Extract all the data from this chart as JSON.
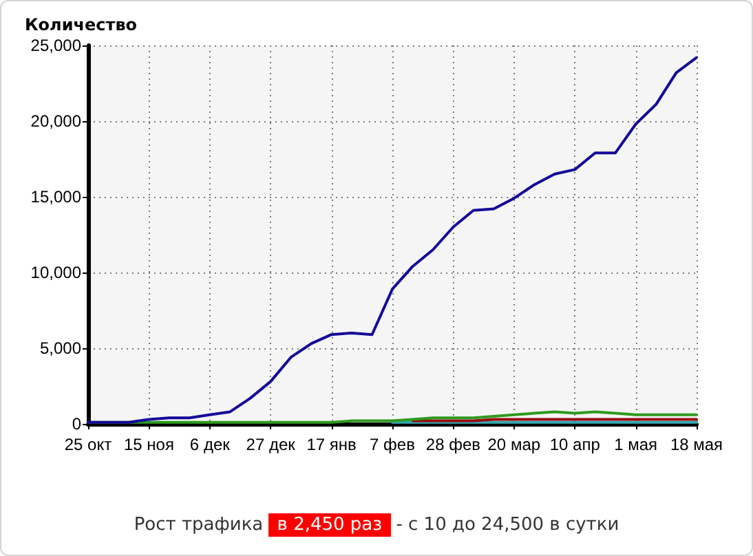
{
  "chart_data": {
    "type": "line",
    "ylabel": "Количество",
    "categories": [
      "25 окт",
      null,
      null,
      "15 ноя",
      null,
      null,
      "6 дек",
      null,
      null,
      "27 дек",
      null,
      null,
      "17 янв",
      null,
      null,
      "7 фев",
      null,
      null,
      "28 фев",
      null,
      null,
      "20 мар",
      null,
      null,
      "10 апр",
      null,
      null,
      "1 мая",
      null,
      null,
      "18 мая"
    ],
    "series": [
      {
        "color": "#14099a",
        "values": [
          100,
          100,
          100,
          300,
          400,
          400,
          600,
          800,
          1700,
          2800,
          4400,
          5300,
          5900,
          6000,
          5900,
          8900,
          10400,
          11500,
          13000,
          14100,
          14200,
          14900,
          15800,
          16500,
          16800,
          17900,
          17900,
          19800,
          21100,
          23200,
          24200
        ]
      },
      {
        "color": "#2e9a1e",
        "values": [
          100,
          100,
          100,
          100,
          100,
          100,
          100,
          100,
          100,
          100,
          100,
          100,
          100,
          200,
          200,
          200,
          300,
          400,
          400,
          400,
          500,
          600,
          700,
          800,
          700,
          800,
          700,
          600,
          600,
          600,
          600
        ]
      },
      {
        "color": "#9a0a0a",
        "values": [
          null,
          null,
          null,
          null,
          null,
          null,
          null,
          null,
          null,
          null,
          null,
          null,
          null,
          null,
          null,
          null,
          200,
          200,
          200,
          200,
          300,
          300,
          300,
          300,
          300,
          300,
          300,
          300,
          300,
          300,
          300
        ]
      },
      {
        "color": "#33a8b0",
        "values": [
          null,
          null,
          null,
          null,
          null,
          null,
          null,
          null,
          null,
          null,
          null,
          null,
          null,
          null,
          null,
          100,
          100,
          100,
          100,
          100,
          100,
          100,
          100,
          100,
          100,
          100,
          100,
          100,
          100,
          100,
          100
        ]
      }
    ],
    "ylim": [
      0,
      25000
    ],
    "yticks": [
      0,
      {
        "value": 5000,
        "label": "5,000"
      },
      {
        "value": 10000,
        "label": "10,000"
      },
      {
        "value": 15000,
        "label": "15,000"
      },
      {
        "value": 20000,
        "label": "20,000"
      },
      {
        "value": 25000,
        "label": "25,000"
      }
    ],
    "grid": true,
    "marker": "none",
    "annotations": [
      "Рост трафика",
      "в 2,450 раз",
      "- с 10 до 24,500 в сутки"
    ]
  }
}
